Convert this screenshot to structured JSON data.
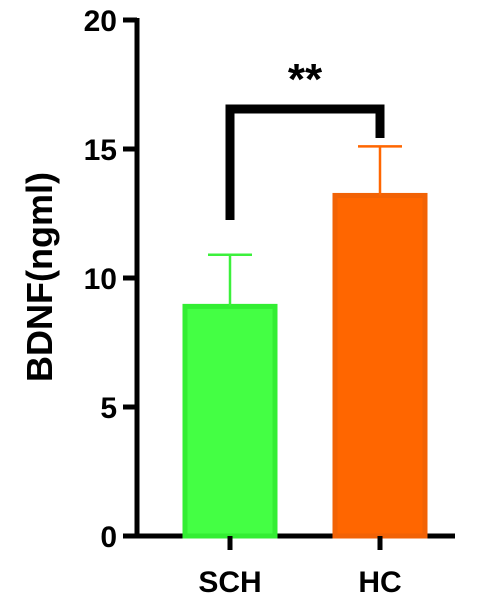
{
  "chart_data": {
    "type": "bar",
    "title": "",
    "xlabel": "",
    "ylabel": "BDNF(ngml)",
    "ylim": [
      0,
      20
    ],
    "yticks": [
      0,
      5,
      10,
      15,
      20
    ],
    "categories": [
      "SCH",
      "HC"
    ],
    "values": [
      8.9,
      13.2
    ],
    "error_upper": [
      10.9,
      15.1
    ],
    "bar_colors": [
      "#44FF44",
      "#FF6600"
    ],
    "bar_edge_colors": [
      "#33EE33",
      "#F26205"
    ],
    "error_colors": [
      "#3CF03C",
      "#FF6600"
    ],
    "significance": {
      "label": "**",
      "between": [
        "SCH",
        "HC"
      ]
    }
  }
}
